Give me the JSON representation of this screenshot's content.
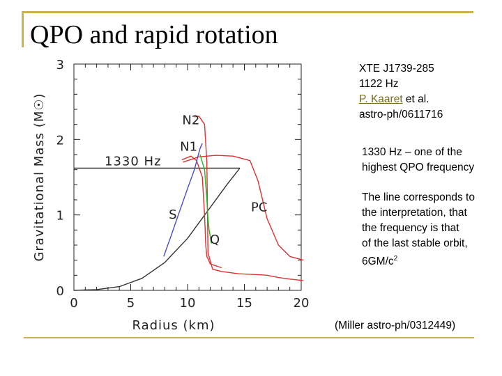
{
  "slide": {
    "title": "QPO and rapid rotation"
  },
  "reference": {
    "source": "XTE J1739-285",
    "frequency": "1122 Hz",
    "author": "P. Kaaret",
    "author_suffix": " et al.",
    "arxiv": "astro-ph/0611716"
  },
  "notes": {
    "qpo_line1": "1330 Hz – one of the",
    "qpo_line2": "highest QPO frequency",
    "line_1": "The line corresponds to",
    "line_2": "the interpretation, that",
    "line_3": "the frequency is that",
    "line_4": "of the last stable orbit,",
    "line_5_text": "6GM/c",
    "line_5_sup": "2"
  },
  "citation": "(Miller astro-ph/0312449)",
  "chart_data": {
    "type": "line",
    "xlabel": "Radius (km)",
    "ylabel": "Gravitational Mass (M☉)",
    "xlim": [
      0,
      20
    ],
    "ylim": [
      0,
      3
    ],
    "x_ticks": [
      "0",
      "5",
      "10",
      "15",
      "20"
    ],
    "y_ticks": [
      "0",
      "1",
      "2",
      "3"
    ],
    "annotation": "1330 Hz",
    "labels": [
      {
        "text": "N2",
        "x": 10.3,
        "y": 2.2
      },
      {
        "text": "N1",
        "x": 10.1,
        "y": 1.85
      },
      {
        "text": "S",
        "x": 8.7,
        "y": 0.95
      },
      {
        "text": "PC",
        "x": 16.3,
        "y": 1.05
      },
      {
        "text": "Q",
        "x": 12.4,
        "y": 0.62
      }
    ],
    "series": [
      {
        "color": "#333333",
        "x": [
          0,
          4,
          6,
          8,
          10,
          12,
          14,
          14.6
        ],
        "y": [
          1.62,
          1.62,
          1.62,
          1.62,
          1.62,
          1.62,
          1.62,
          1.62
        ]
      },
      {
        "color": "#333333",
        "x": [
          0,
          2,
          4,
          6,
          8,
          10,
          12,
          13.5,
          14.6
        ],
        "y": [
          0.0,
          0.01,
          0.05,
          0.16,
          0.37,
          0.69,
          1.1,
          1.41,
          1.62
        ]
      },
      {
        "color": "#e03030",
        "x": [
          10.6,
          11.0,
          11.5,
          11.7,
          11.8,
          12.2,
          13.0,
          14.5,
          16.0,
          17.0,
          18.0,
          19.0,
          20.2
        ],
        "y": [
          2.3,
          2.31,
          2.2,
          1.7,
          0.5,
          0.28,
          0.25,
          0.22,
          0.21,
          0.2,
          0.17,
          0.15,
          0.13
        ]
      },
      {
        "color": "#e03030",
        "x": [
          9.6,
          11.0,
          12.5,
          14.0,
          15.5,
          16.2,
          17.0,
          18.0,
          19.0,
          20.2
        ],
        "y": [
          1.7,
          1.77,
          1.79,
          1.78,
          1.72,
          1.45,
          0.95,
          0.6,
          0.45,
          0.4
        ]
      },
      {
        "color": "#e03030",
        "x": [
          9.5,
          10.3,
          10.8,
          11.3,
          11.5,
          11.6,
          11.7,
          12.0,
          13.0
        ],
        "y": [
          1.73,
          1.78,
          1.72,
          1.5,
          1.0,
          0.6,
          0.45,
          0.35,
          0.3
        ]
      },
      {
        "color": "#4a4acc",
        "x": [
          7.9,
          8.5,
          9.3,
          10.0,
          10.6,
          11.1,
          11.3
        ],
        "y": [
          0.45,
          0.7,
          1.05,
          1.35,
          1.6,
          1.88,
          1.95
        ]
      },
      {
        "color": "#22bb22",
        "x": [
          11.1,
          11.5,
          11.7,
          11.8,
          11.9,
          12.1
        ],
        "y": [
          1.8,
          1.6,
          1.2,
          0.95,
          0.8,
          0.62
        ]
      }
    ]
  }
}
